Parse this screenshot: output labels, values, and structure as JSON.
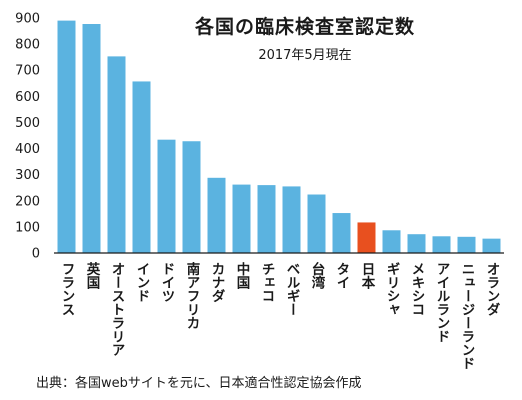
{
  "chart_data": {
    "type": "bar",
    "title": "各国の臨床検査室認定数",
    "subtitle": "2017年5月現在",
    "categories": [
      "フランス",
      "英国",
      "オーストラリア",
      "インド",
      "ドイツ",
      "南アフリカ",
      "カナダ",
      "中国",
      "チェコ",
      "ベルギー",
      "台湾",
      "タイ",
      "日本",
      "ギリシャ",
      "メキシコ",
      "アイルランド",
      "ニュージーランド",
      "オランダ"
    ],
    "values": [
      890,
      877,
      753,
      657,
      434,
      428,
      288,
      262,
      260,
      255,
      224,
      153,
      117,
      87,
      72,
      64,
      62,
      55
    ],
    "ylim": [
      0,
      900
    ],
    "yticks": [
      0,
      100,
      200,
      300,
      400,
      500,
      600,
      700,
      800,
      900
    ],
    "bar_color": "#5bb3e0",
    "highlight_color": "#e8501f",
    "highlight_category": "日本",
    "xlabel": "",
    "ylabel": "",
    "grid": false
  },
  "source": "出典：各国webサイトを元に、日本適合性認定協会作成"
}
